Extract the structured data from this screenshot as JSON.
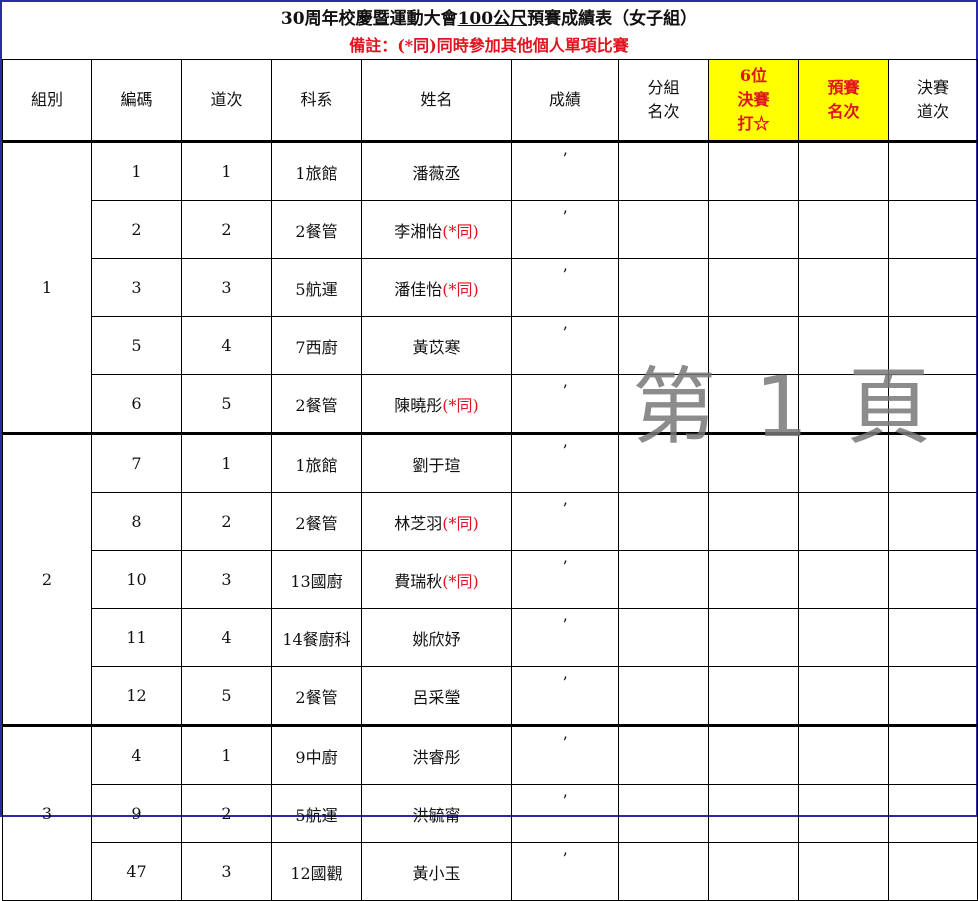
{
  "title": {
    "prefix": "30周年校慶暨運動大會",
    "underlined": "100公尺",
    "suffix": "預賽成績表（女子組）"
  },
  "note": "備註：(*同)同時參加其他個人單項比賽",
  "headers": [
    "組別",
    "編碼",
    "道次",
    "科系",
    "姓名",
    "成績",
    "分組\n名次",
    "6位\n決賽\n打☆",
    "預賽\n名次",
    "決賽\n道次"
  ],
  "highlight_color": "#ffff00",
  "same_mark": "(*同)",
  "groups": [
    {
      "group": "1",
      "rows": [
        {
          "code": "1",
          "lane": "1",
          "dept": "1旅館",
          "name": "潘薇丞",
          "same": false,
          "result": "’"
        },
        {
          "code": "2",
          "lane": "2",
          "dept": "2餐管",
          "name": "李湘怡",
          "same": true,
          "result": "’"
        },
        {
          "code": "3",
          "lane": "3",
          "dept": "5航運",
          "name": "潘佳怡",
          "same": true,
          "result": "’"
        },
        {
          "code": "5",
          "lane": "4",
          "dept": "7西廚",
          "name": "黃苡寒",
          "same": false,
          "result": "’"
        },
        {
          "code": "6",
          "lane": "5",
          "dept": "2餐管",
          "name": "陳曉彤",
          "same": true,
          "result": "’"
        }
      ]
    },
    {
      "group": "2",
      "rows": [
        {
          "code": "7",
          "lane": "1",
          "dept": "1旅館",
          "name": "劉于瑄",
          "same": false,
          "result": "’"
        },
        {
          "code": "8",
          "lane": "2",
          "dept": "2餐管",
          "name": "林芝羽",
          "same": true,
          "result": "’"
        },
        {
          "code": "10",
          "lane": "3",
          "dept": "13國廚",
          "name": "費瑞秋",
          "same": true,
          "result": "’"
        },
        {
          "code": "11",
          "lane": "4",
          "dept": "14餐廚科",
          "name": "姚欣妤",
          "same": false,
          "result": "’"
        },
        {
          "code": "12",
          "lane": "5",
          "dept": "2餐管",
          "name": "呂采瑩",
          "same": false,
          "result": "’"
        }
      ]
    },
    {
      "group": "3",
      "rows": [
        {
          "code": "4",
          "lane": "1",
          "dept": "9中廚",
          "name": "洪睿彤",
          "same": false,
          "result": "’"
        },
        {
          "code": "9",
          "lane": "2",
          "dept": "5航運",
          "name": "洪毓甯",
          "same": false,
          "result": "’"
        },
        {
          "code": "47",
          "lane": "3",
          "dept": "12國觀",
          "name": "黃小玉",
          "same": false,
          "result": "’"
        }
      ]
    }
  ],
  "watermark": "第 1 頁"
}
